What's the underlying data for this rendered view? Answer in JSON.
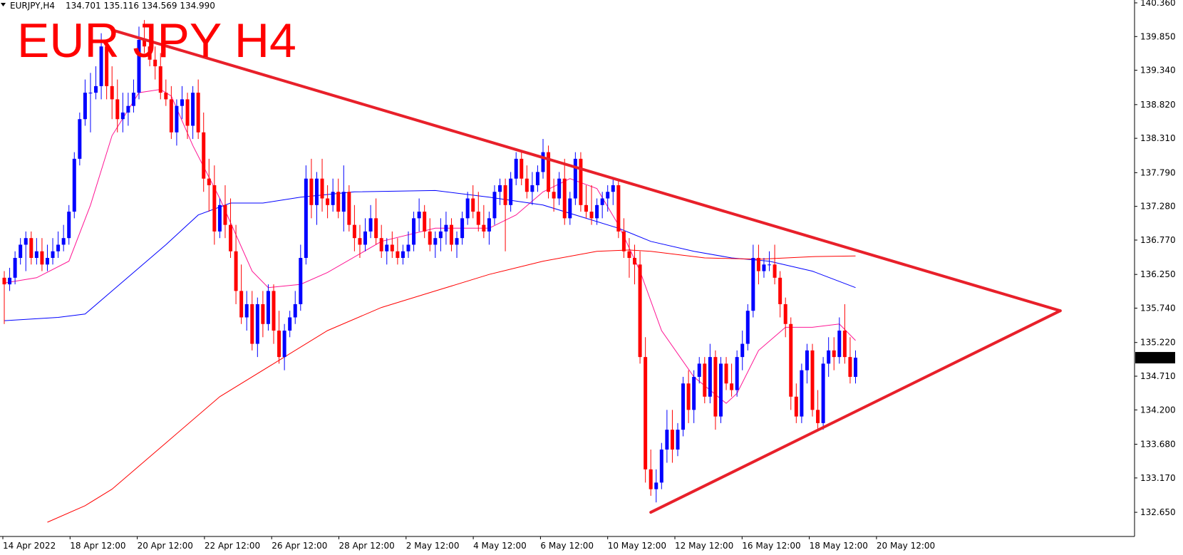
{
  "header": {
    "symbol": "EURJPY,H4",
    "ohlc": "134.701 135.116 134.569 134.990",
    "annotation": "EUR JPY H4"
  },
  "colors": {
    "bull": "#0000ff",
    "bear": "#ff0000",
    "ma_fast": "#ff1493",
    "ma_mid": "#0000ff",
    "ma_slow": "#ff0000",
    "trendline": "#e8202a",
    "axis": "#000000",
    "price_tag_bg": "#000000",
    "price_tag_fg": "#ffffff"
  },
  "chart_data": {
    "type": "candlestick",
    "title": "EUR JPY H4",
    "ylim": [
      132.5,
      140.36
    ],
    "y_ticks": [
      "140.360",
      "139.850",
      "139.340",
      "138.820",
      "138.310",
      "137.790",
      "137.280",
      "136.770",
      "136.250",
      "135.740",
      "135.220",
      "134.710",
      "134.200",
      "133.680",
      "133.170",
      "132.650"
    ],
    "x_labels": [
      "14 Apr 2022",
      "18 Apr 12:00",
      "20 Apr 12:00",
      "22 Apr 12:00",
      "26 Apr 12:00",
      "28 Apr 12:00",
      "2 May 12:00",
      "4 May 12:00",
      "6 May 12:00",
      "10 May 12:00",
      "12 May 12:00",
      "16 May 12:00",
      "18 May 12:00",
      "20 May 12:00"
    ],
    "last_price": "134.990",
    "candles": [
      [
        136.2,
        136.3,
        135.5,
        136.1
      ],
      [
        136.1,
        136.35,
        136.0,
        136.2
      ],
      [
        136.2,
        136.6,
        136.1,
        136.5
      ],
      [
        136.5,
        136.8,
        136.4,
        136.7
      ],
      [
        136.7,
        136.9,
        136.3,
        136.8
      ],
      [
        136.8,
        136.9,
        136.4,
        136.5
      ],
      [
        136.5,
        136.8,
        136.4,
        136.6
      ],
      [
        136.6,
        136.8,
        136.3,
        136.4
      ],
      [
        136.4,
        136.7,
        136.3,
        136.5
      ],
      [
        136.5,
        136.8,
        136.4,
        136.6
      ],
      [
        136.6,
        136.9,
        136.5,
        136.7
      ],
      [
        136.7,
        137.0,
        136.6,
        136.8
      ],
      [
        136.8,
        137.3,
        136.7,
        137.2
      ],
      [
        137.2,
        138.1,
        137.1,
        138.0
      ],
      [
        138.0,
        138.7,
        137.9,
        138.6
      ],
      [
        138.6,
        139.2,
        138.5,
        139.0
      ],
      [
        139.0,
        139.3,
        138.4,
        139.0
      ],
      [
        139.0,
        139.4,
        138.9,
        139.1
      ],
      [
        139.1,
        139.9,
        138.9,
        139.7
      ],
      [
        139.7,
        139.8,
        138.9,
        139.1
      ],
      [
        139.1,
        139.4,
        138.6,
        138.9
      ],
      [
        138.9,
        139.2,
        138.4,
        138.6
      ],
      [
        138.6,
        139.0,
        138.4,
        138.7
      ],
      [
        138.7,
        139.0,
        138.5,
        138.8
      ],
      [
        138.8,
        139.2,
        138.7,
        139.0
      ],
      [
        139.0,
        140.0,
        138.9,
        139.8
      ],
      [
        139.8,
        140.1,
        139.6,
        139.7
      ],
      [
        139.7,
        139.9,
        139.4,
        139.5
      ],
      [
        139.5,
        139.7,
        139.2,
        139.4
      ],
      [
        139.4,
        139.6,
        138.9,
        139.0
      ],
      [
        139.0,
        139.2,
        138.8,
        138.9
      ],
      [
        138.9,
        139.1,
        138.3,
        138.4
      ],
      [
        138.4,
        138.9,
        138.2,
        138.8
      ],
      [
        138.8,
        139.1,
        138.6,
        138.9
      ],
      [
        138.9,
        139.0,
        138.3,
        138.5
      ],
      [
        138.5,
        139.1,
        138.3,
        139.0
      ],
      [
        139.0,
        139.2,
        138.3,
        138.4
      ],
      [
        138.4,
        138.7,
        137.5,
        137.7
      ],
      [
        137.7,
        138.0,
        137.2,
        137.6
      ],
      [
        137.6,
        137.9,
        136.7,
        136.9
      ],
      [
        136.9,
        137.4,
        136.8,
        137.3
      ],
      [
        137.3,
        137.6,
        136.8,
        137.0
      ],
      [
        137.0,
        137.4,
        136.5,
        136.6
      ],
      [
        136.6,
        137.0,
        135.8,
        136.0
      ],
      [
        136.0,
        136.4,
        135.5,
        135.6
      ],
      [
        135.6,
        136.0,
        135.4,
        135.8
      ],
      [
        135.8,
        136.0,
        135.1,
        135.2
      ],
      [
        135.2,
        135.9,
        135.0,
        135.8
      ],
      [
        135.8,
        136.0,
        135.3,
        135.5
      ],
      [
        135.5,
        136.1,
        135.4,
        136.0
      ],
      [
        136.0,
        136.1,
        135.2,
        135.4
      ],
      [
        135.4,
        135.7,
        134.9,
        135.0
      ],
      [
        135.0,
        135.5,
        134.8,
        135.4
      ],
      [
        135.4,
        135.7,
        135.3,
        135.6
      ],
      [
        135.6,
        136.0,
        135.5,
        135.8
      ],
      [
        135.8,
        136.7,
        135.7,
        136.5
      ],
      [
        136.5,
        137.9,
        136.4,
        137.7
      ],
      [
        137.7,
        138.0,
        137.1,
        137.3
      ],
      [
        137.3,
        137.8,
        137.0,
        137.7
      ],
      [
        137.7,
        138.0,
        137.2,
        137.4
      ],
      [
        137.4,
        137.6,
        137.1,
        137.3
      ],
      [
        137.3,
        137.7,
        137.2,
        137.5
      ],
      [
        137.5,
        137.7,
        137.1,
        137.2
      ],
      [
        137.2,
        137.9,
        136.9,
        137.5
      ],
      [
        137.5,
        137.6,
        136.9,
        137.0
      ],
      [
        137.0,
        137.3,
        136.6,
        136.8
      ],
      [
        136.8,
        137.0,
        136.5,
        136.7
      ],
      [
        136.7,
        137.1,
        136.6,
        136.9
      ],
      [
        136.9,
        137.3,
        136.8,
        137.1
      ],
      [
        137.1,
        137.4,
        136.7,
        136.8
      ],
      [
        136.8,
        137.0,
        136.5,
        136.6
      ],
      [
        136.6,
        136.8,
        136.4,
        136.7
      ],
      [
        136.7,
        136.9,
        136.5,
        136.6
      ],
      [
        136.6,
        136.8,
        136.4,
        136.5
      ],
      [
        136.5,
        136.7,
        136.4,
        136.6
      ],
      [
        136.6,
        136.9,
        136.5,
        136.7
      ],
      [
        136.7,
        137.2,
        136.6,
        137.1
      ],
      [
        137.1,
        137.4,
        136.9,
        137.2
      ],
      [
        137.2,
        137.3,
        136.8,
        136.9
      ],
      [
        136.9,
        137.1,
        136.6,
        136.7
      ],
      [
        136.7,
        136.9,
        136.5,
        136.8
      ],
      [
        136.8,
        137.1,
        136.6,
        136.9
      ],
      [
        136.9,
        137.2,
        136.7,
        137.0
      ],
      [
        137.0,
        137.1,
        136.6,
        136.7
      ],
      [
        136.7,
        136.9,
        136.5,
        136.8
      ],
      [
        136.8,
        137.2,
        136.7,
        137.1
      ],
      [
        137.1,
        137.5,
        137.0,
        137.4
      ],
      [
        137.4,
        137.6,
        137.1,
        137.2
      ],
      [
        137.2,
        137.5,
        136.9,
        137.0
      ],
      [
        137.0,
        137.3,
        136.8,
        136.9
      ],
      [
        136.9,
        137.2,
        136.7,
        137.1
      ],
      [
        137.1,
        137.6,
        137.0,
        137.5
      ],
      [
        137.5,
        137.7,
        137.3,
        137.6
      ],
      [
        137.6,
        137.7,
        136.6,
        137.3
      ],
      [
        137.3,
        137.8,
        137.2,
        137.7
      ],
      [
        137.7,
        138.1,
        137.6,
        138.0
      ],
      [
        138.0,
        138.1,
        137.6,
        137.7
      ],
      [
        137.7,
        137.9,
        137.4,
        137.5
      ],
      [
        137.5,
        137.8,
        137.3,
        137.6
      ],
      [
        137.6,
        137.9,
        137.5,
        137.8
      ],
      [
        137.8,
        138.3,
        137.7,
        138.1
      ],
      [
        138.1,
        138.2,
        137.4,
        137.5
      ],
      [
        137.5,
        137.7,
        137.2,
        137.4
      ],
      [
        137.4,
        137.8,
        137.3,
        137.7
      ],
      [
        137.7,
        138.0,
        137.0,
        137.1
      ],
      [
        137.1,
        137.5,
        137.0,
        137.4
      ],
      [
        137.4,
        138.1,
        137.3,
        138.0
      ],
      [
        138.0,
        138.1,
        137.2,
        137.3
      ],
      [
        137.3,
        137.6,
        137.1,
        137.2
      ],
      [
        137.2,
        137.6,
        137.0,
        137.1
      ],
      [
        137.1,
        137.4,
        137.0,
        137.3
      ],
      [
        137.3,
        137.5,
        137.1,
        137.4
      ],
      [
        137.4,
        137.6,
        137.2,
        137.5
      ],
      [
        137.5,
        137.7,
        137.3,
        137.6
      ],
      [
        137.6,
        137.7,
        136.8,
        136.9
      ],
      [
        136.9,
        137.1,
        136.5,
        136.6
      ],
      [
        136.6,
        136.8,
        136.2,
        136.5
      ],
      [
        136.5,
        136.7,
        136.1,
        136.4
      ],
      [
        136.4,
        136.6,
        134.9,
        135.0
      ],
      [
        135.0,
        135.3,
        133.1,
        133.3
      ],
      [
        133.3,
        133.6,
        132.9,
        133.0
      ],
      [
        133.0,
        133.3,
        132.8,
        133.1
      ],
      [
        133.1,
        133.7,
        133.0,
        133.6
      ],
      [
        133.6,
        134.2,
        133.4,
        133.9
      ],
      [
        133.9,
        134.2,
        133.4,
        133.6
      ],
      [
        133.6,
        134.0,
        133.5,
        133.9
      ],
      [
        133.9,
        134.7,
        133.8,
        134.6
      ],
      [
        134.6,
        134.8,
        134.0,
        134.2
      ],
      [
        134.2,
        134.8,
        134.0,
        134.7
      ],
      [
        134.7,
        135.0,
        134.6,
        134.9
      ],
      [
        134.9,
        135.0,
        134.3,
        134.4
      ],
      [
        134.4,
        135.2,
        134.3,
        135.0
      ],
      [
        135.0,
        135.1,
        133.9,
        134.1
      ],
      [
        134.1,
        135.0,
        134.0,
        134.9
      ],
      [
        134.9,
        135.0,
        134.5,
        134.6
      ],
      [
        134.6,
        134.9,
        134.4,
        134.5
      ],
      [
        134.5,
        135.1,
        134.4,
        135.0
      ],
      [
        135.0,
        135.4,
        134.8,
        135.2
      ],
      [
        135.2,
        135.8,
        135.1,
        135.7
      ],
      [
        135.7,
        136.7,
        135.6,
        136.5
      ],
      [
        136.5,
        136.7,
        136.1,
        136.3
      ],
      [
        136.3,
        136.5,
        136.2,
        136.4
      ],
      [
        136.4,
        136.6,
        136.3,
        136.4
      ],
      [
        136.4,
        136.7,
        136.1,
        136.2
      ],
      [
        136.2,
        136.3,
        135.6,
        135.8
      ],
      [
        135.8,
        135.9,
        135.3,
        135.5
      ],
      [
        135.5,
        135.6,
        134.2,
        134.4
      ],
      [
        134.4,
        134.6,
        134.0,
        134.1
      ],
      [
        134.1,
        134.9,
        134.0,
        134.8
      ],
      [
        134.8,
        135.2,
        134.6,
        135.1
      ],
      [
        135.1,
        135.2,
        134.1,
        134.2
      ],
      [
        134.2,
        134.5,
        133.9,
        134.0
      ],
      [
        134.0,
        135.0,
        133.9,
        134.9
      ],
      [
        134.9,
        135.3,
        134.7,
        135.1
      ],
      [
        135.1,
        135.3,
        134.8,
        135.0
      ],
      [
        135.0,
        135.6,
        134.9,
        135.4
      ],
      [
        135.4,
        135.8,
        134.9,
        135.0
      ],
      [
        135.0,
        135.3,
        134.6,
        134.7
      ],
      [
        134.7,
        135.1,
        134.6,
        134.99
      ]
    ],
    "moving_averages": [
      {
        "color": "#ff1493",
        "points": [
          [
            0,
            136.12
          ],
          [
            6,
            136.2
          ],
          [
            12,
            136.45
          ],
          [
            16,
            137.3
          ],
          [
            20,
            138.35
          ],
          [
            25,
            139.0
          ],
          [
            29,
            139.05
          ],
          [
            31,
            138.95
          ],
          [
            35,
            138.2
          ],
          [
            40,
            137.4
          ],
          [
            46,
            136.3
          ],
          [
            49,
            136.05
          ],
          [
            55,
            136.1
          ],
          [
            60,
            136.28
          ],
          [
            70,
            136.75
          ],
          [
            80,
            136.95
          ],
          [
            90,
            136.95
          ],
          [
            95,
            137.15
          ],
          [
            100,
            137.5
          ],
          [
            105,
            137.7
          ],
          [
            110,
            137.55
          ],
          [
            114,
            137.0
          ],
          [
            118,
            136.3
          ],
          [
            122,
            135.4
          ],
          [
            128,
            134.7
          ],
          [
            134,
            134.3
          ],
          [
            136,
            134.45
          ],
          [
            140,
            135.1
          ],
          [
            145,
            135.45
          ],
          [
            150,
            135.45
          ],
          [
            155,
            135.5
          ],
          [
            158,
            135.25
          ]
        ]
      },
      {
        "color": "#0000ff",
        "points": [
          [
            0,
            135.55
          ],
          [
            10,
            135.6
          ],
          [
            15,
            135.65
          ],
          [
            20,
            136.0
          ],
          [
            30,
            136.7
          ],
          [
            36,
            137.15
          ],
          [
            42,
            137.33
          ],
          [
            48,
            137.33
          ],
          [
            55,
            137.42
          ],
          [
            65,
            137.5
          ],
          [
            80,
            137.52
          ],
          [
            90,
            137.42
          ],
          [
            100,
            137.3
          ],
          [
            108,
            137.1
          ],
          [
            114,
            136.95
          ],
          [
            120,
            136.75
          ],
          [
            128,
            136.6
          ],
          [
            135,
            136.5
          ],
          [
            142,
            136.45
          ],
          [
            150,
            136.3
          ],
          [
            158,
            136.05
          ]
        ]
      },
      {
        "color": "#ff0000",
        "points": [
          [
            8,
            132.5
          ],
          [
            15,
            132.75
          ],
          [
            20,
            133.0
          ],
          [
            30,
            133.7
          ],
          [
            40,
            134.4
          ],
          [
            50,
            134.9
          ],
          [
            60,
            135.4
          ],
          [
            70,
            135.75
          ],
          [
            80,
            136.0
          ],
          [
            90,
            136.25
          ],
          [
            100,
            136.45
          ],
          [
            110,
            136.6
          ],
          [
            116,
            136.62
          ],
          [
            120,
            136.6
          ],
          [
            130,
            136.5
          ],
          [
            140,
            136.48
          ],
          [
            150,
            136.52
          ],
          [
            158,
            136.53
          ]
        ]
      }
    ],
    "trendlines": [
      {
        "from": [
          20,
          139.95
        ],
        "to": [
          196,
          135.7
        ]
      },
      {
        "from": [
          120,
          132.65
        ],
        "to": [
          196,
          135.7
        ]
      }
    ]
  }
}
